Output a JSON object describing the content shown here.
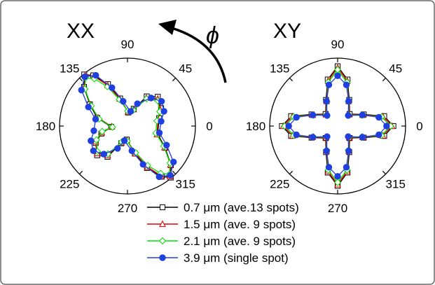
{
  "chart_data": [
    {
      "type": "polar-line",
      "title": "XX",
      "theta_tick_labels": [
        "0",
        "45",
        "90",
        "135",
        "180",
        "225",
        "270",
        "315"
      ],
      "grid": false,
      "series": [
        {
          "name": "0.7 μm (ave.13 spots)",
          "color": "#000000",
          "marker": "square-open",
          "points": [
            [
              14,
              0.48
            ],
            [
              28,
              0.56
            ],
            [
              44,
              0.62
            ],
            [
              57,
              0.52
            ],
            [
              70,
              0.27
            ],
            [
              87,
              0.2
            ],
            [
              105,
              0.42
            ],
            [
              115,
              0.68
            ],
            [
              124,
              0.9
            ],
            [
              130,
              0.99
            ],
            [
              138,
              0.86
            ],
            [
              150,
              0.64
            ],
            [
              165,
              0.46
            ],
            [
              183,
              0.24
            ],
            [
              196,
              0.4
            ],
            [
              208,
              0.53
            ],
            [
              224,
              0.62
            ],
            [
              237,
              0.54
            ],
            [
              250,
              0.27
            ],
            [
              267,
              0.2
            ],
            [
              285,
              0.42
            ],
            [
              295,
              0.68
            ],
            [
              304,
              0.9
            ],
            [
              310,
              0.99
            ],
            [
              318,
              0.86
            ],
            [
              330,
              0.64
            ],
            [
              345,
              0.46
            ]
          ]
        },
        {
          "name": "1.5 μm (ave. 9 spots)",
          "color": "#e00000",
          "marker": "triangle-open",
          "points": [
            [
              12,
              0.46
            ],
            [
              26,
              0.54
            ],
            [
              42,
              0.6
            ],
            [
              56,
              0.5
            ],
            [
              70,
              0.26
            ],
            [
              88,
              0.21
            ],
            [
              106,
              0.42
            ],
            [
              116,
              0.67
            ],
            [
              124,
              0.88
            ],
            [
              130,
              0.97
            ],
            [
              138,
              0.85
            ],
            [
              150,
              0.63
            ],
            [
              164,
              0.45
            ],
            [
              182,
              0.23
            ],
            [
              194,
              0.39
            ],
            [
              206,
              0.52
            ],
            [
              222,
              0.6
            ],
            [
              236,
              0.52
            ],
            [
              250,
              0.26
            ],
            [
              268,
              0.21
            ],
            [
              286,
              0.42
            ],
            [
              296,
              0.67
            ],
            [
              304,
              0.88
            ],
            [
              310,
              0.97
            ],
            [
              318,
              0.85
            ],
            [
              330,
              0.63
            ],
            [
              344,
              0.45
            ]
          ]
        },
        {
          "name": "2.1 μm (ave. 9 spots)",
          "color": "#00e000",
          "marker": "diamond-open",
          "points": [
            [
              10,
              0.44
            ],
            [
              24,
              0.52
            ],
            [
              40,
              0.58
            ],
            [
              55,
              0.49
            ],
            [
              70,
              0.25
            ],
            [
              89,
              0.22
            ],
            [
              107,
              0.41
            ],
            [
              117,
              0.65
            ],
            [
              125,
              0.85
            ],
            [
              131,
              0.94
            ],
            [
              139,
              0.83
            ],
            [
              151,
              0.61
            ],
            [
              166,
              0.43
            ],
            [
              184,
              0.22
            ],
            [
              192,
              0.38
            ],
            [
              204,
              0.5
            ],
            [
              220,
              0.58
            ],
            [
              235,
              0.5
            ],
            [
              250,
              0.25
            ],
            [
              269,
              0.22
            ],
            [
              287,
              0.41
            ],
            [
              297,
              0.65
            ],
            [
              305,
              0.85
            ],
            [
              311,
              0.94
            ],
            [
              319,
              0.83
            ],
            [
              331,
              0.61
            ],
            [
              346,
              0.43
            ]
          ]
        },
        {
          "name": "3.9 μm (single spot)",
          "color": "#1f3fe0",
          "marker": "circle-filled",
          "points": [
            [
              8,
              0.5
            ],
            [
              22,
              0.58
            ],
            [
              36,
              0.62
            ],
            [
              50,
              0.54
            ],
            [
              66,
              0.36
            ],
            [
              78,
              0.22
            ],
            [
              100,
              0.37
            ],
            [
              112,
              0.61
            ],
            [
              122,
              0.88
            ],
            [
              131,
              0.96
            ],
            [
              142,
              0.86
            ],
            [
              154,
              0.64
            ],
            [
              168,
              0.48
            ],
            [
              188,
              0.5
            ],
            [
              202,
              0.58
            ],
            [
              216,
              0.62
            ],
            [
              230,
              0.54
            ],
            [
              246,
              0.36
            ],
            [
              258,
              0.22
            ],
            [
              280,
              0.37
            ],
            [
              292,
              0.61
            ],
            [
              302,
              0.88
            ],
            [
              311,
              0.96
            ],
            [
              322,
              0.86
            ],
            [
              334,
              0.64
            ],
            [
              348,
              0.48
            ]
          ]
        }
      ]
    },
    {
      "type": "polar-line",
      "title": "XY",
      "theta_tick_labels": [
        "0",
        "45",
        "90",
        "135",
        "180",
        "225",
        "270",
        "315"
      ],
      "grid": false,
      "series": [
        {
          "name": "0.7 μm (ave.13 spots)",
          "color": "#000000",
          "marker": "square-open",
          "points": [
            [
              0,
              0.82
            ],
            [
              12,
              0.7
            ],
            [
              24,
              0.42
            ],
            [
              45,
              0.25
            ],
            [
              66,
              0.42
            ],
            [
              78,
              0.7
            ],
            [
              90,
              0.88
            ],
            [
              102,
              0.7
            ],
            [
              114,
              0.42
            ],
            [
              135,
              0.25
            ],
            [
              156,
              0.42
            ],
            [
              168,
              0.7
            ],
            [
              180,
              0.82
            ],
            [
              192,
              0.7
            ],
            [
              204,
              0.42
            ],
            [
              225,
              0.25
            ],
            [
              246,
              0.42
            ],
            [
              258,
              0.7
            ],
            [
              270,
              0.88
            ],
            [
              282,
              0.7
            ],
            [
              294,
              0.42
            ],
            [
              315,
              0.25
            ],
            [
              336,
              0.42
            ],
            [
              348,
              0.7
            ]
          ]
        },
        {
          "name": "1.5 μm (ave. 9 spots)",
          "color": "#e00000",
          "marker": "triangle-open",
          "points": [
            [
              0,
              0.8
            ],
            [
              12,
              0.68
            ],
            [
              24,
              0.4
            ],
            [
              45,
              0.24
            ],
            [
              66,
              0.4
            ],
            [
              78,
              0.68
            ],
            [
              90,
              0.86
            ],
            [
              102,
              0.68
            ],
            [
              114,
              0.4
            ],
            [
              135,
              0.24
            ],
            [
              156,
              0.4
            ],
            [
              168,
              0.68
            ],
            [
              180,
              0.8
            ],
            [
              192,
              0.68
            ],
            [
              204,
              0.4
            ],
            [
              225,
              0.24
            ],
            [
              246,
              0.4
            ],
            [
              258,
              0.68
            ],
            [
              270,
              0.86
            ],
            [
              282,
              0.68
            ],
            [
              294,
              0.4
            ],
            [
              315,
              0.24
            ],
            [
              336,
              0.4
            ],
            [
              348,
              0.68
            ]
          ]
        },
        {
          "name": "2.1 μm (ave. 9 spots)",
          "color": "#00e000",
          "marker": "diamond-open",
          "points": [
            [
              0,
              0.78
            ],
            [
              12,
              0.66
            ],
            [
              24,
              0.39
            ],
            [
              45,
              0.23
            ],
            [
              66,
              0.39
            ],
            [
              78,
              0.66
            ],
            [
              90,
              0.83
            ],
            [
              102,
              0.66
            ],
            [
              114,
              0.39
            ],
            [
              135,
              0.23
            ],
            [
              156,
              0.39
            ],
            [
              168,
              0.66
            ],
            [
              180,
              0.78
            ],
            [
              192,
              0.66
            ],
            [
              204,
              0.39
            ],
            [
              225,
              0.23
            ],
            [
              246,
              0.39
            ],
            [
              258,
              0.66
            ],
            [
              270,
              0.83
            ],
            [
              282,
              0.66
            ],
            [
              294,
              0.39
            ],
            [
              315,
              0.23
            ],
            [
              336,
              0.39
            ],
            [
              348,
              0.66
            ]
          ]
        },
        {
          "name": "3.9 μm (single spot)",
          "color": "#1f3fe0",
          "marker": "circle-filled",
          "points": [
            [
              0,
              0.72
            ],
            [
              12,
              0.62
            ],
            [
              24,
              0.4
            ],
            [
              45,
              0.22
            ],
            [
              66,
              0.4
            ],
            [
              78,
              0.62
            ],
            [
              90,
              0.74
            ],
            [
              102,
              0.62
            ],
            [
              114,
              0.4
            ],
            [
              135,
              0.22
            ],
            [
              156,
              0.4
            ],
            [
              168,
              0.62
            ],
            [
              180,
              0.72
            ],
            [
              192,
              0.62
            ],
            [
              204,
              0.4
            ],
            [
              225,
              0.22
            ],
            [
              246,
              0.4
            ],
            [
              258,
              0.62
            ],
            [
              270,
              0.74
            ],
            [
              282,
              0.62
            ],
            [
              294,
              0.4
            ],
            [
              315,
              0.22
            ],
            [
              336,
              0.4
            ],
            [
              348,
              0.62
            ]
          ]
        }
      ]
    }
  ],
  "rotation_label": "ϕ"
}
